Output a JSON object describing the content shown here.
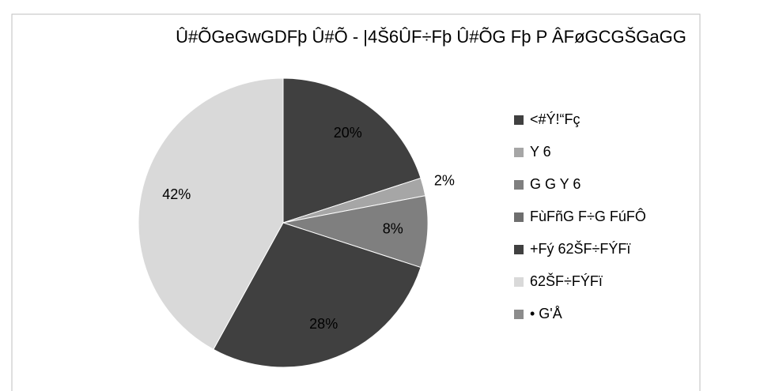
{
  "chart_data": {
    "type": "pie",
    "title": "Û#ÕGeGwGDFþ Û#Õ - |4Š6ÛF÷Fþ Û#ÕG Fþ P ÂFøGCGŠGaGG",
    "categories": [
      "<#Ý!“Fç",
      "Y 6",
      "G G  Y 6",
      "FùFñG F÷G FúFÔ",
      "+Fý 62ŠF÷FÝFï",
      "62ŠF÷FÝFï",
      "• G'Å"
    ],
    "values": [
      20,
      2,
      8,
      0,
      28,
      42,
      0
    ],
    "value_labels": [
      "20%",
      "2%",
      "8%",
      null,
      "28%",
      "42%",
      null
    ],
    "colors": [
      "#404040",
      "#a6a6a6",
      "#7f7f7f",
      "#6e6e6e",
      "#404040",
      "#d9d9d9",
      "#8c8c8c"
    ],
    "legend": "right"
  }
}
